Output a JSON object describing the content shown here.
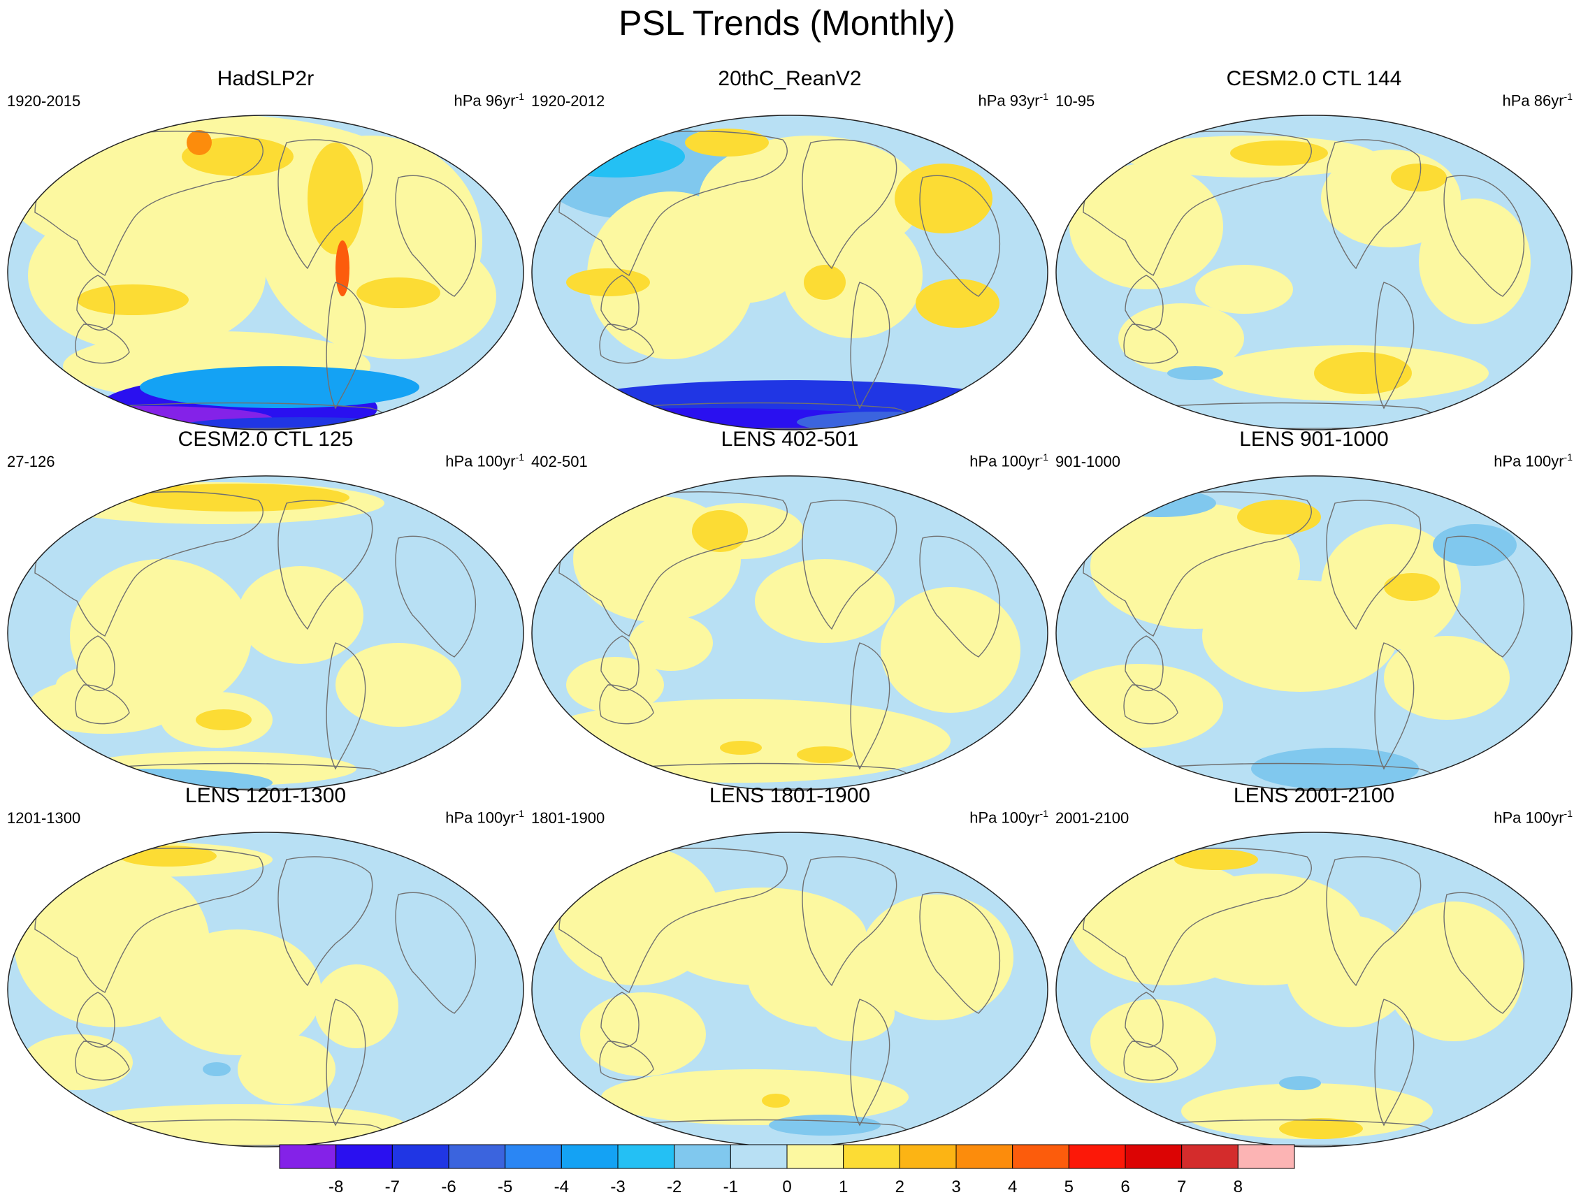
{
  "chart_data": {
    "type": "contour-map",
    "title": "PSL Trends (Monthly)",
    "projection": "Robinson (Pacific-centered)",
    "variable": "Sea level pressure trend",
    "panels": [
      {
        "title": "HadSLP2r",
        "period": "1920-2015",
        "units_prefix": "hPa 96yr",
        "units_exp": "-1"
      },
      {
        "title": "20thC_ReanV2",
        "period": "1920-2012",
        "units_prefix": "hPa 93yr",
        "units_exp": "-1"
      },
      {
        "title": "CESM2.0 CTL 144",
        "period": "10-95",
        "units_prefix": "hPa 86yr",
        "units_exp": "-1"
      },
      {
        "title": "CESM2.0 CTL 125",
        "period": "27-126",
        "units_prefix": "hPa 100yr",
        "units_exp": "-1"
      },
      {
        "title": "LENS 402-501",
        "period": "402-501",
        "units_prefix": "hPa 100yr",
        "units_exp": "-1"
      },
      {
        "title": "LENS 901-1000",
        "period": "901-1000",
        "units_prefix": "hPa 100yr",
        "units_exp": "-1"
      },
      {
        "title": "LENS 1201-1300",
        "period": "1201-1300",
        "units_prefix": "hPa 100yr",
        "units_exp": "-1"
      },
      {
        "title": "LENS 1801-1900",
        "period": "1801-1900",
        "units_prefix": "hPa 100yr",
        "units_exp": "-1"
      },
      {
        "title": "LENS 2001-2100",
        "period": "2001-2100",
        "units_prefix": "hPa 100yr",
        "units_exp": "-1"
      }
    ],
    "colorbar": {
      "levels": [
        "-8",
        "-7",
        "-6",
        "-5",
        "-4",
        "-3",
        "-2",
        "-1",
        "0",
        "1",
        "2",
        "3",
        "4",
        "5",
        "6",
        "7",
        "8"
      ],
      "colors": [
        "#8422e8",
        "#2a10f0",
        "#2036e4",
        "#3b64de",
        "#2a86f4",
        "#14a2f4",
        "#24c0f4",
        "#80c8ee",
        "#b8e0f4",
        "#fcf8a0",
        "#fcdc34",
        "#fcb414",
        "#fc8c0c",
        "#fc5c0c",
        "#fc1808",
        "#dc0404",
        "#d42c2c",
        "#fcb4b4"
      ]
    },
    "colors": {
      "ocean_neutral": "#b8e0f4",
      "positive_weak": "#fcf8a0",
      "coast": "#707070"
    }
  }
}
